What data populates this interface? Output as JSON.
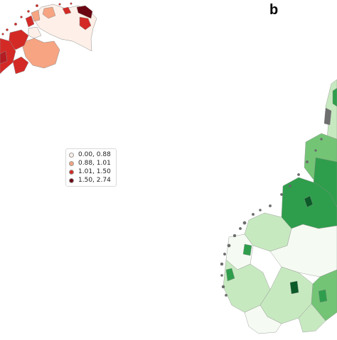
{
  "panel_label": "b",
  "legend": {
    "items": [
      {
        "label": "0.00, 0.88",
        "color": "#fef0e8"
      },
      {
        "label": "0.88, 1.01",
        "color": "#f6a482"
      },
      {
        "label": "1.01, 1.50",
        "color": "#d42a26"
      },
      {
        "label": "1.50, 2.74",
        "color": "#6b0511"
      }
    ]
  },
  "colors": {
    "red_scale": [
      "#fef0e8",
      "#f6a482",
      "#d42a26",
      "#6b0511"
    ],
    "green_scale": [
      "#f5fbf2",
      "#c7e9c0",
      "#74c476",
      "#2f9e4c",
      "#0b5a28"
    ],
    "border": "#8c8c8c",
    "coast_gray": "#6e6e6e"
  }
}
